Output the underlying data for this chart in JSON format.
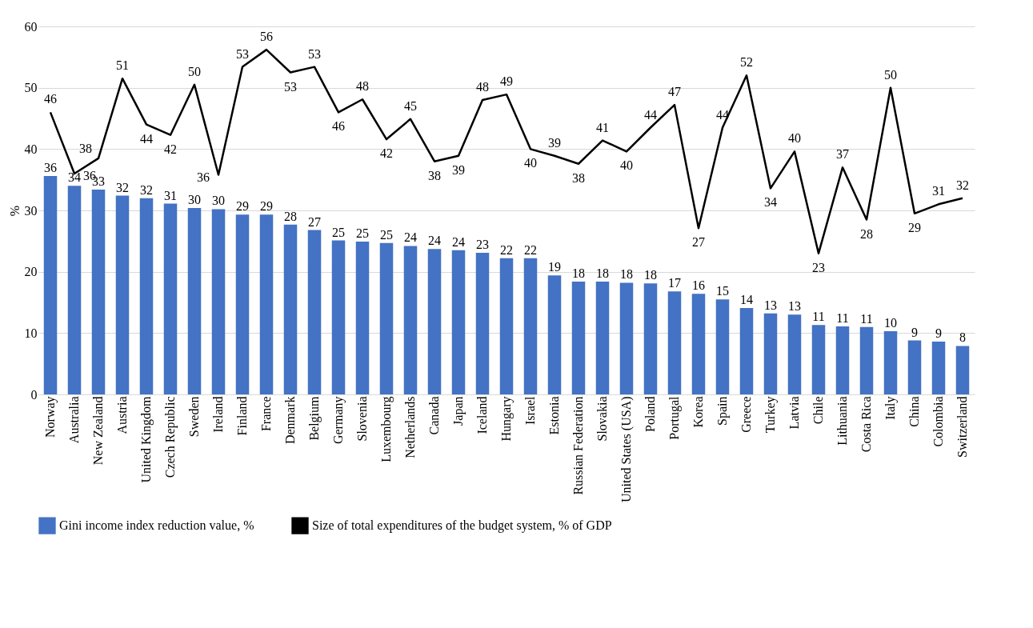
{
  "chart_data": {
    "type": "bar",
    "ylabel": "%",
    "ylim": [
      0,
      60
    ],
    "yticks": [
      0,
      10,
      20,
      30,
      40,
      50,
      60
    ],
    "grid": "y",
    "legend": "bottom",
    "categories": [
      "Norway",
      "Australia",
      "New Zealand",
      "Austria",
      "United Kingdom",
      "Czech Republic",
      "Sweden",
      "Ireland",
      "Finland",
      "France",
      "Denmark",
      "Belgium",
      "Germany",
      "Slovenia",
      "Luxembourg",
      "Netherlands",
      "Canada",
      "Japan",
      "Iceland",
      "Hungary",
      "Israel",
      "Estonia",
      "Russian Federation",
      "Slovakia",
      "United States (USA)",
      "Poland",
      "Portugal",
      "Korea",
      "Spain",
      "Greece",
      "Turkey",
      "Latvia",
      "Chile",
      "Lithuania",
      "Costa Rica",
      "Italy",
      "China",
      "Colombia",
      "Switzerland"
    ],
    "series": [
      {
        "name": "Gini income index reduction value, %",
        "color": "#4472c4",
        "values": [
          35.6,
          34,
          33.4,
          32.4,
          32,
          31.1,
          30.4,
          30.2,
          29.3,
          29.3,
          27.7,
          26.8,
          25.1,
          24.9,
          24.7,
          24.2,
          23.7,
          23.5,
          23.1,
          22.2,
          22.2,
          19.4,
          18.4,
          18.4,
          18.2,
          18.1,
          16.8,
          16.4,
          15.5,
          14.1,
          13.2,
          13,
          11.3,
          11.1,
          11,
          10.3,
          8.8,
          8.6,
          7.9
        ],
        "value_labels": [
          "36",
          "34",
          "33",
          "32",
          "32",
          "31",
          "30",
          "30",
          "29",
          "29",
          "28",
          "27",
          "25",
          "25",
          "25",
          "24",
          "24",
          "24",
          "23",
          "22",
          "22",
          "19",
          "18",
          "18",
          "18",
          "18",
          "17",
          "16",
          "15",
          "14",
          "13",
          "13",
          "11",
          "11",
          "11",
          "10",
          "9",
          "9",
          "8"
        ]
      },
      {
        "name": "Size of total expenditures of the budget system, % of GDP",
        "type": "line",
        "color": "#000000",
        "values": [
          46,
          36,
          38.5,
          51.5,
          44,
          42.3,
          50.5,
          35.8,
          53.4,
          56.2,
          52.5,
          53.4,
          46,
          48.1,
          41.6,
          44.9,
          38,
          38.9,
          48,
          48.9,
          40,
          38.9,
          37.6,
          41.4,
          39.6,
          43.5,
          47.2,
          27.1,
          43.5,
          52,
          33.6,
          39.6,
          23,
          37,
          28.5,
          50,
          29.5,
          31,
          32
        ],
        "value_labels": [
          "46",
          "36",
          "38",
          "51",
          "44",
          "42",
          "50",
          "36",
          "53",
          "56",
          "53",
          "53",
          "46",
          "48",
          "42",
          "45",
          "38",
          "39",
          "48",
          "49",
          "40",
          "39",
          "38",
          "41",
          "40",
          "44",
          "47",
          "27",
          "44",
          "52",
          "34",
          "40",
          "23",
          "37",
          "28",
          "50",
          "29",
          "31",
          "32"
        ]
      }
    ]
  }
}
